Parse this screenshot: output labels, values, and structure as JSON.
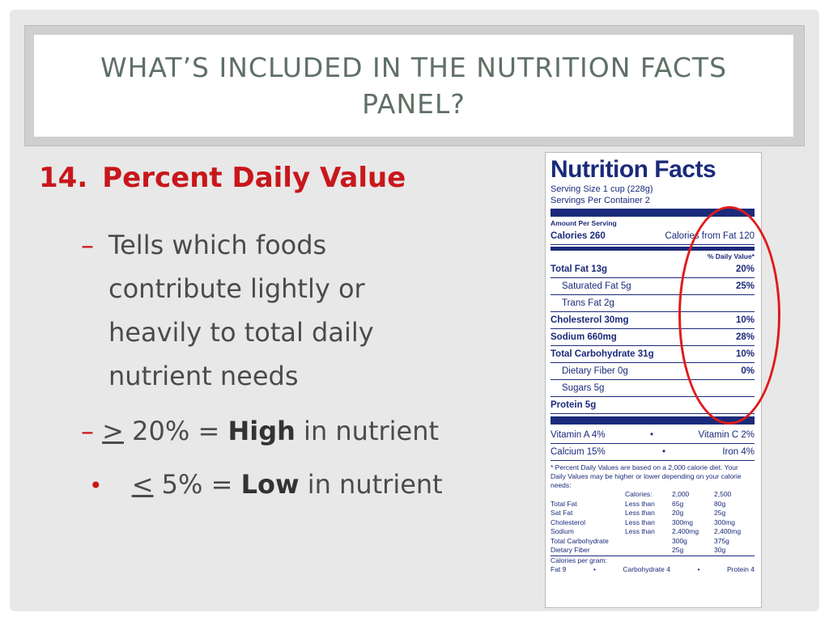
{
  "title": {
    "line1": "WHAT’S INCLUDED IN THE NUTRITION FACTS",
    "line2": "PANEL?"
  },
  "heading": {
    "number": "14.",
    "text": "Percent Daily Value"
  },
  "bullets": {
    "b1_lines": [
      "Tells which foods",
      "contribute lightly or",
      "heavily to total daily",
      "nutrient needs"
    ],
    "b2": {
      "symbol": ">",
      "rest": " 20% = ",
      "bold": "High",
      "tail": " in nutrient"
    },
    "b3": {
      "symbol": "<",
      "rest": " 5% = ",
      "bold": "Low",
      "tail": " in nutrient"
    }
  },
  "label": {
    "title": "Nutrition Facts",
    "serving_size": "Serving Size 1 cup (228g)",
    "servings": "Servings Per Container 2",
    "amount_per_serving": "Amount Per Serving",
    "calories": "Calories 260",
    "calories_fat": "Calories from Fat 120",
    "dv_header": "% Daily Value*",
    "rows": [
      {
        "label": "Total Fat 13g",
        "pct": "20%",
        "indent": false
      },
      {
        "label": "Saturated Fat 5g",
        "pct": "25%",
        "indent": true
      },
      {
        "label": "Trans Fat 2g",
        "pct": "",
        "indent": true
      },
      {
        "label": "Cholesterol 30mg",
        "pct": "10%",
        "indent": false
      },
      {
        "label": "Sodium 660mg",
        "pct": "28%",
        "indent": false
      },
      {
        "label": "Total Carbohydrate 31g",
        "pct": "10%",
        "indent": false
      },
      {
        "label": "Dietary Fiber 0g",
        "pct": "0%",
        "indent": true
      },
      {
        "label": "Sugars 5g",
        "pct": "",
        "indent": true
      },
      {
        "label": "Protein 5g",
        "pct": "",
        "indent": false
      }
    ],
    "vitamins": [
      {
        "left": "Vitamin A 4%",
        "right": "Vitamin C 2%"
      },
      {
        "left": "Calcium 15%",
        "right": "Iron 4%"
      }
    ],
    "footnote": "* Percent Daily Values are based on a 2,000 calorie diet. Your Daily Values may be higher or lower depending on your calorie needs:",
    "table_header": [
      "",
      "Calories:",
      "2,000",
      "2,500"
    ],
    "table_rows": [
      [
        "Total Fat",
        "Less than",
        "65g",
        "80g"
      ],
      [
        "Sat Fat",
        "Less than",
        "20g",
        "25g"
      ],
      [
        "Cholesterol",
        "Less than",
        "300mg",
        "300mg"
      ],
      [
        "Sodium",
        "Less than",
        "2,400mg",
        "2,400mg"
      ],
      [
        "Total Carbohydrate",
        "",
        "300g",
        "375g"
      ],
      [
        "Dietary Fiber",
        "",
        "25g",
        "30g"
      ]
    ],
    "calories_per_gram": "Calories per gram:",
    "cpg": [
      "Fat 9",
      "•",
      "Carbohydrate 4",
      "•",
      "Protein 4"
    ]
  },
  "colors": {
    "accent": "#c8171b",
    "label_blue": "#1b2a7a",
    "ring": "#e01b1b"
  }
}
